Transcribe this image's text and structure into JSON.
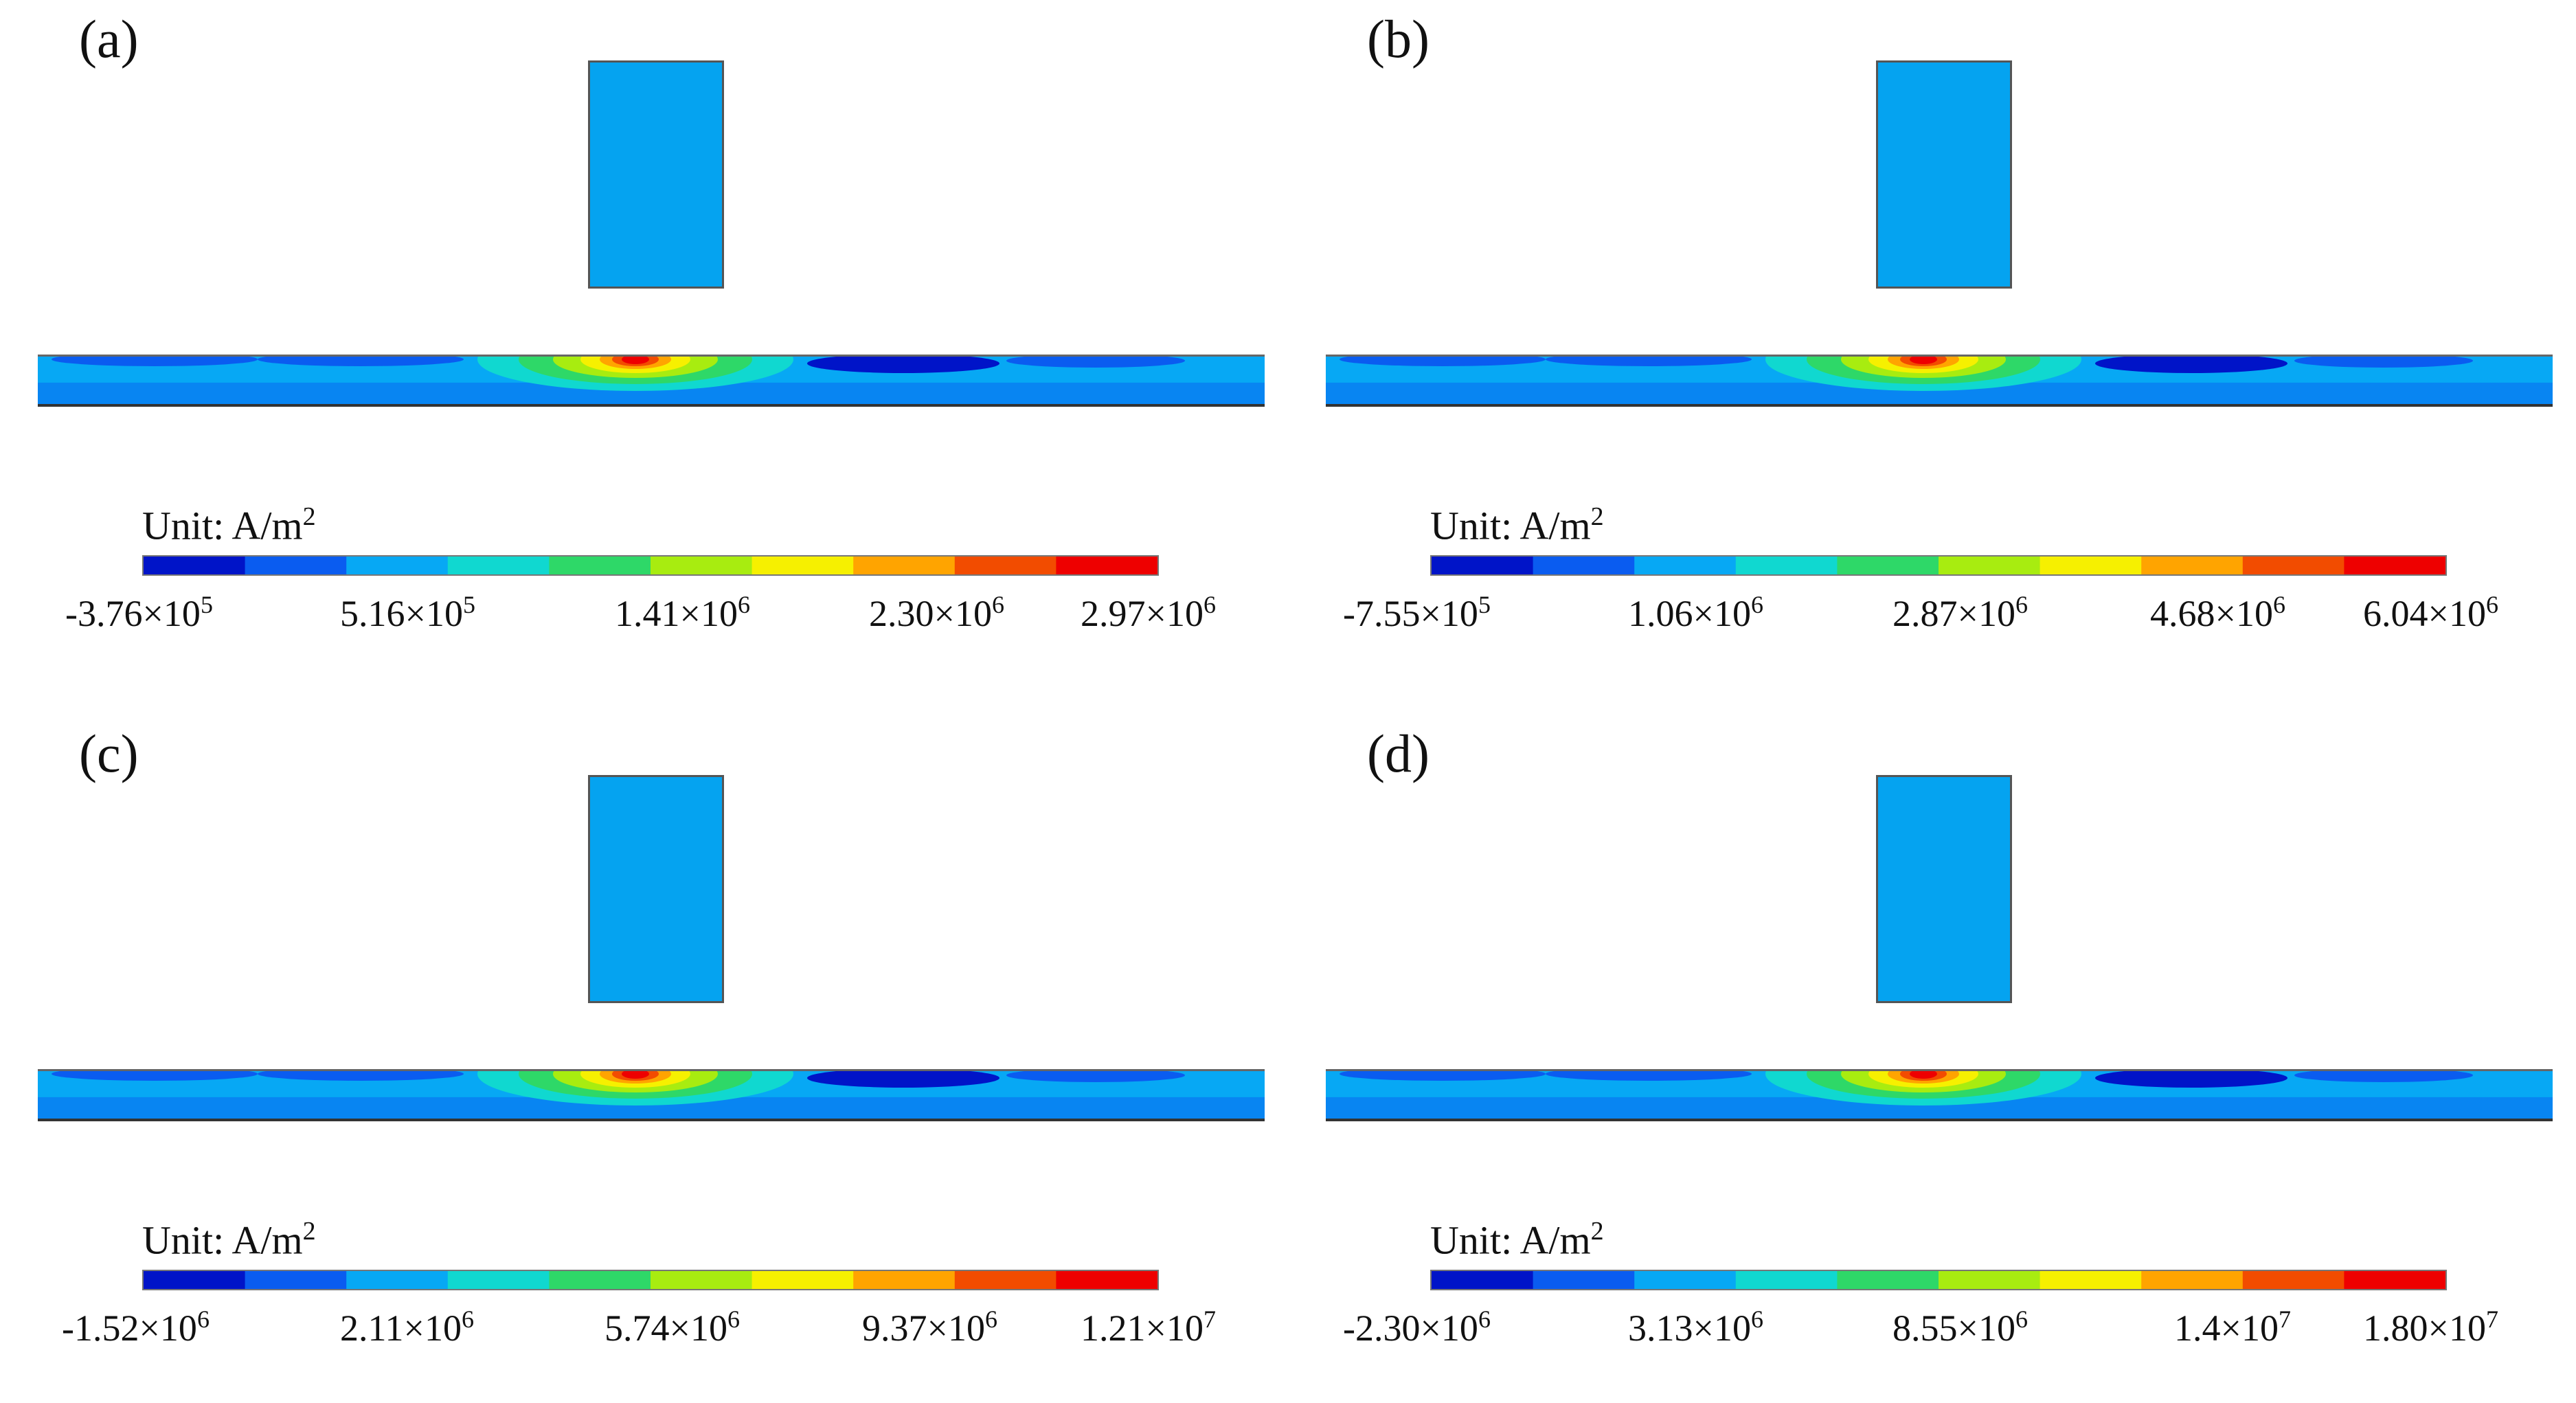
{
  "colormap": [
    "#0014c8",
    "#0a5cf0",
    "#07a8f4",
    "#10d8d0",
    "#2ed868",
    "#a8ec10",
    "#f6f000",
    "#ffa400",
    "#f24c00",
    "#ee0000"
  ],
  "electrode_color": "#05a3f0",
  "panels": [
    {
      "label": "(a)",
      "unit_label": "Unit: A/m",
      "unit_sup": "2",
      "ticks": [
        {
          "mantissa": "-3.76×10",
          "exp": "5"
        },
        {
          "mantissa": "5.16×10",
          "exp": "5"
        },
        {
          "mantissa": "1.41×10",
          "exp": "6"
        },
        {
          "mantissa": "2.30×10",
          "exp": "6"
        },
        {
          "mantissa": "2.97×10",
          "exp": "6"
        }
      ]
    },
    {
      "label": "(b)",
      "unit_label": "Unit: A/m",
      "unit_sup": "2",
      "ticks": [
        {
          "mantissa": "-7.55×10",
          "exp": "5"
        },
        {
          "mantissa": "1.06×10",
          "exp": "6"
        },
        {
          "mantissa": "2.87×10",
          "exp": "6"
        },
        {
          "mantissa": "4.68×10",
          "exp": "6"
        },
        {
          "mantissa": "6.04×10",
          "exp": "6"
        }
      ]
    },
    {
      "label": "(c)",
      "unit_label": "Unit: A/m",
      "unit_sup": "2",
      "ticks": [
        {
          "mantissa": "-1.52×10",
          "exp": "6"
        },
        {
          "mantissa": "2.11×10",
          "exp": "6"
        },
        {
          "mantissa": "5.74×10",
          "exp": "6"
        },
        {
          "mantissa": "9.37×10",
          "exp": "6"
        },
        {
          "mantissa": "1.21×10",
          "exp": "7"
        }
      ]
    },
    {
      "label": "(d)",
      "unit_label": "Unit: A/m",
      "unit_sup": "2",
      "ticks": [
        {
          "mantissa": "-2.30×10",
          "exp": "6"
        },
        {
          "mantissa": "3.13×10",
          "exp": "6"
        },
        {
          "mantissa": "8.55×10",
          "exp": "6"
        },
        {
          "mantissa": "1.4×10",
          "exp": "7"
        },
        {
          "mantissa": "1.80×10",
          "exp": "7"
        }
      ]
    }
  ]
}
